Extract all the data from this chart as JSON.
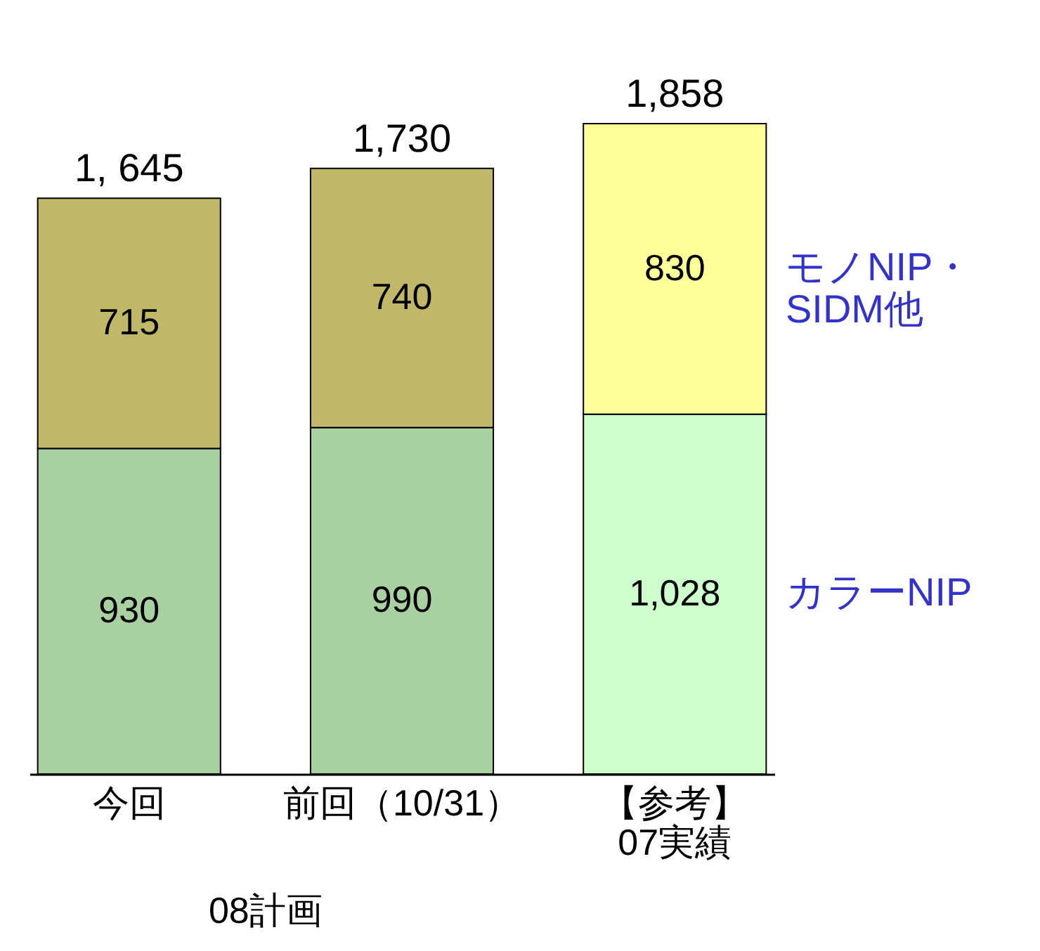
{
  "chart_data": {
    "type": "bar",
    "stacked": true,
    "categories": [
      "今回",
      "前回（10/31）",
      "【参考】\n07実績"
    ],
    "series": [
      {
        "name": "カラーNIP",
        "colors": [
          "#a8d0a0",
          "#a8d0a0",
          "#ccffcc"
        ],
        "values": [
          930,
          990,
          1028
        ],
        "value_labels": [
          "930",
          "990",
          "1,028"
        ]
      },
      {
        "name": "モノNIP・\nSIDM他",
        "colors": [
          "#c0b868",
          "#c0b868",
          "#ffff99"
        ],
        "values": [
          715,
          740,
          830
        ],
        "value_labels": [
          "715",
          "740",
          "830"
        ]
      }
    ],
    "totals": [
      "1, 645",
      "1,730",
      "1,858"
    ],
    "annotations": [
      "08計画"
    ]
  }
}
